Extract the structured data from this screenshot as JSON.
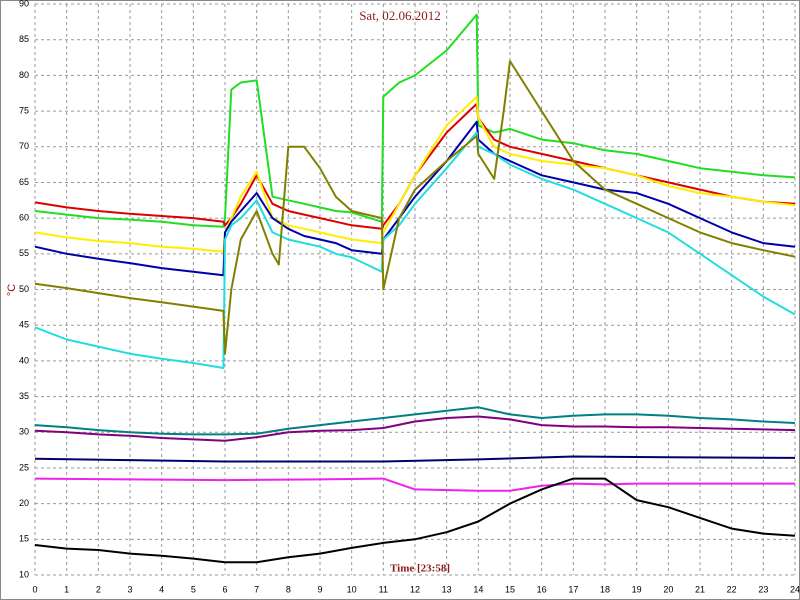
{
  "chart_data": {
    "type": "line",
    "title": "Sat, 02.06.2012",
    "x_label": "Time [23:58]",
    "y_label": "°C",
    "xlim": [
      0,
      24
    ],
    "ylim": [
      10,
      90
    ],
    "xticks": [
      0,
      1,
      2,
      3,
      4,
      5,
      6,
      7,
      8,
      9,
      10,
      11,
      12,
      13,
      14,
      15,
      16,
      17,
      18,
      19,
      20,
      21,
      22,
      23,
      24
    ],
    "yticks": [
      10,
      15,
      20,
      25,
      30,
      35,
      40,
      45,
      50,
      55,
      60,
      65,
      70,
      75,
      80,
      85,
      90
    ],
    "grid": true,
    "series": [
      {
        "color": "#22dd22",
        "x": [
          0,
          1,
          2,
          3,
          4,
          5,
          5.95,
          6,
          6.2,
          6.5,
          7,
          7.5,
          8,
          8.5,
          9,
          9.5,
          10,
          10.95,
          11,
          11.5,
          12,
          13,
          13.95,
          14,
          14.5,
          15,
          16,
          17,
          18,
          19,
          20,
          21,
          22,
          23,
          24
        ],
        "values": [
          61,
          60.5,
          60,
          59.8,
          59.5,
          59,
          58.8,
          60,
          78,
          79,
          79.3,
          63,
          62.5,
          62,
          61.5,
          61,
          60.8,
          59.5,
          77,
          79,
          80,
          83.5,
          88.5,
          73,
          72,
          72.5,
          71,
          70.5,
          69.5,
          69,
          68,
          67,
          66.5,
          66,
          65.7
        ]
      },
      {
        "color": "#dd0000",
        "x": [
          0,
          1,
          2,
          3,
          4,
          5,
          5.95,
          6,
          6.2,
          6.5,
          7,
          7.5,
          8,
          8.5,
          9,
          9.5,
          10,
          10.95,
          11,
          11.5,
          12,
          13,
          13.95,
          14,
          14.5,
          15,
          16,
          17,
          18,
          19,
          20,
          21,
          22,
          23,
          24
        ],
        "values": [
          62.2,
          61.5,
          61,
          60.6,
          60.3,
          60,
          59.5,
          59,
          60,
          62,
          66,
          62,
          61,
          60.5,
          60,
          59.5,
          59,
          58.5,
          59,
          62,
          66,
          72,
          76,
          74,
          71,
          70,
          69,
          68,
          67,
          66,
          65,
          64,
          63,
          62.3,
          62
        ]
      },
      {
        "color": "#ffee00",
        "x": [
          0,
          1,
          2,
          3,
          4,
          5,
          5.95,
          6,
          6.2,
          6.5,
          7,
          7.5,
          8,
          8.5,
          9,
          9.5,
          10,
          10.95,
          11,
          11.5,
          12,
          13,
          13.95,
          14,
          14.5,
          15,
          16,
          17,
          18,
          19,
          20,
          21,
          22,
          23,
          24
        ],
        "values": [
          58,
          57.3,
          56.8,
          56.5,
          56,
          55.7,
          55.3,
          58,
          60,
          63,
          66.5,
          60,
          59,
          58.5,
          58,
          57.5,
          57,
          56.5,
          58,
          62,
          66,
          73,
          77,
          74,
          70,
          69,
          68,
          67.5,
          67,
          66,
          64.5,
          63.5,
          63,
          62.3,
          61.8
        ]
      },
      {
        "color": "#0000aa",
        "x": [
          0,
          1,
          2,
          3,
          4,
          5,
          5.95,
          6,
          6.2,
          6.5,
          7,
          7.5,
          8,
          8.5,
          9,
          9.5,
          10,
          10.95,
          11,
          11.5,
          12,
          13,
          13.95,
          14,
          14.5,
          15,
          16,
          17,
          18,
          19,
          20,
          21,
          22,
          23,
          24
        ],
        "values": [
          56,
          55,
          54.3,
          53.7,
          53,
          52.5,
          52,
          58,
          59.5,
          61,
          63.5,
          60,
          58.5,
          57.5,
          57,
          56.5,
          55.5,
          55,
          57,
          60,
          63,
          68,
          73.5,
          71,
          69,
          68,
          66,
          65,
          64,
          63.5,
          62,
          60,
          58,
          56.5,
          56
        ]
      },
      {
        "color": "#22dddd",
        "x": [
          0,
          1,
          2,
          3,
          4,
          5,
          5.95,
          6,
          6.2,
          6.5,
          7,
          7.5,
          8,
          8.5,
          9,
          9.5,
          10,
          10.95,
          11,
          11.5,
          12,
          13,
          13.95,
          14,
          14.5,
          15,
          16,
          17,
          18,
          19,
          20,
          21,
          22,
          23,
          24
        ],
        "values": [
          44.7,
          43,
          42,
          41,
          40.3,
          39.7,
          39,
          57,
          59,
          60,
          62.5,
          58,
          57,
          56.5,
          56,
          55,
          54.5,
          52.5,
          57,
          59,
          62,
          67,
          72,
          70,
          69,
          67.5,
          65.5,
          64,
          62,
          60,
          58,
          55,
          52,
          49,
          46.5
        ]
      },
      {
        "color": "#808000",
        "x": [
          0,
          1,
          2,
          3,
          4,
          5,
          5.95,
          6,
          6.2,
          6.5,
          7,
          7.5,
          7.7,
          8,
          8.5,
          9,
          9.5,
          10,
          10.95,
          11,
          11.5,
          12,
          13,
          13.95,
          14,
          14.5,
          14.8,
          15,
          16,
          17,
          18,
          19,
          20,
          21,
          22,
          23,
          24
        ],
        "values": [
          50.8,
          50.2,
          49.5,
          48.8,
          48.2,
          47.6,
          47,
          41,
          50,
          57,
          61,
          55,
          53.5,
          70,
          70,
          67,
          63,
          61,
          60,
          50,
          60,
          64,
          68,
          71.5,
          69,
          65.5,
          75,
          82,
          75,
          68,
          64,
          62,
          60,
          58,
          56.5,
          55.5,
          54.6
        ]
      },
      {
        "color": "#008080",
        "x": [
          0,
          1,
          2,
          3,
          4,
          5,
          6,
          7,
          8,
          9,
          10,
          11,
          12,
          13,
          14,
          15,
          16,
          17,
          18,
          19,
          20,
          21,
          22,
          23,
          24
        ],
        "values": [
          31,
          30.7,
          30.3,
          30,
          29.8,
          29.7,
          29.7,
          29.8,
          30.5,
          31,
          31.5,
          32,
          32.5,
          33,
          33.5,
          32.5,
          32,
          32.3,
          32.5,
          32.5,
          32.3,
          32,
          31.8,
          31.5,
          31.3
        ]
      },
      {
        "color": "#800080",
        "x": [
          0,
          1,
          2,
          3,
          4,
          5,
          6,
          7,
          8,
          9,
          10,
          11,
          12,
          13,
          14,
          15,
          16,
          17,
          18,
          19,
          20,
          21,
          22,
          23,
          24
        ],
        "values": [
          30.2,
          30,
          29.7,
          29.5,
          29.2,
          29,
          28.8,
          29.3,
          30,
          30.2,
          30.3,
          30.6,
          31.5,
          32,
          32.2,
          31.8,
          31,
          30.8,
          30.8,
          30.7,
          30.7,
          30.6,
          30.5,
          30.4,
          30.3
        ]
      },
      {
        "color": "#000066",
        "x": [
          0,
          3,
          6,
          9,
          11,
          14,
          17,
          20,
          24
        ],
        "values": [
          26.3,
          26.1,
          25.9,
          25.9,
          25.9,
          26.2,
          26.6,
          26.5,
          26.4
        ]
      },
      {
        "color": "#ee22ee",
        "x": [
          0,
          3,
          6,
          9,
          11,
          12,
          14,
          15,
          16,
          17,
          18,
          19,
          24
        ],
        "values": [
          23.5,
          23.4,
          23.3,
          23.4,
          23.5,
          22,
          21.8,
          21.8,
          22.5,
          22.8,
          22.7,
          22.8,
          22.8
        ]
      },
      {
        "color": "#000000",
        "x": [
          0,
          1,
          2,
          3,
          4,
          5,
          6,
          7,
          8,
          9,
          10,
          11,
          12,
          13,
          14,
          15,
          16,
          17,
          18,
          19,
          20,
          21,
          22,
          23,
          24
        ],
        "values": [
          14.2,
          13.7,
          13.5,
          13,
          12.7,
          12.3,
          11.8,
          11.8,
          12.5,
          13,
          13.8,
          14.5,
          15,
          16,
          17.5,
          20,
          22,
          23.5,
          23.5,
          20.5,
          19.5,
          18,
          16.5,
          15.8,
          15.5
        ]
      }
    ]
  }
}
